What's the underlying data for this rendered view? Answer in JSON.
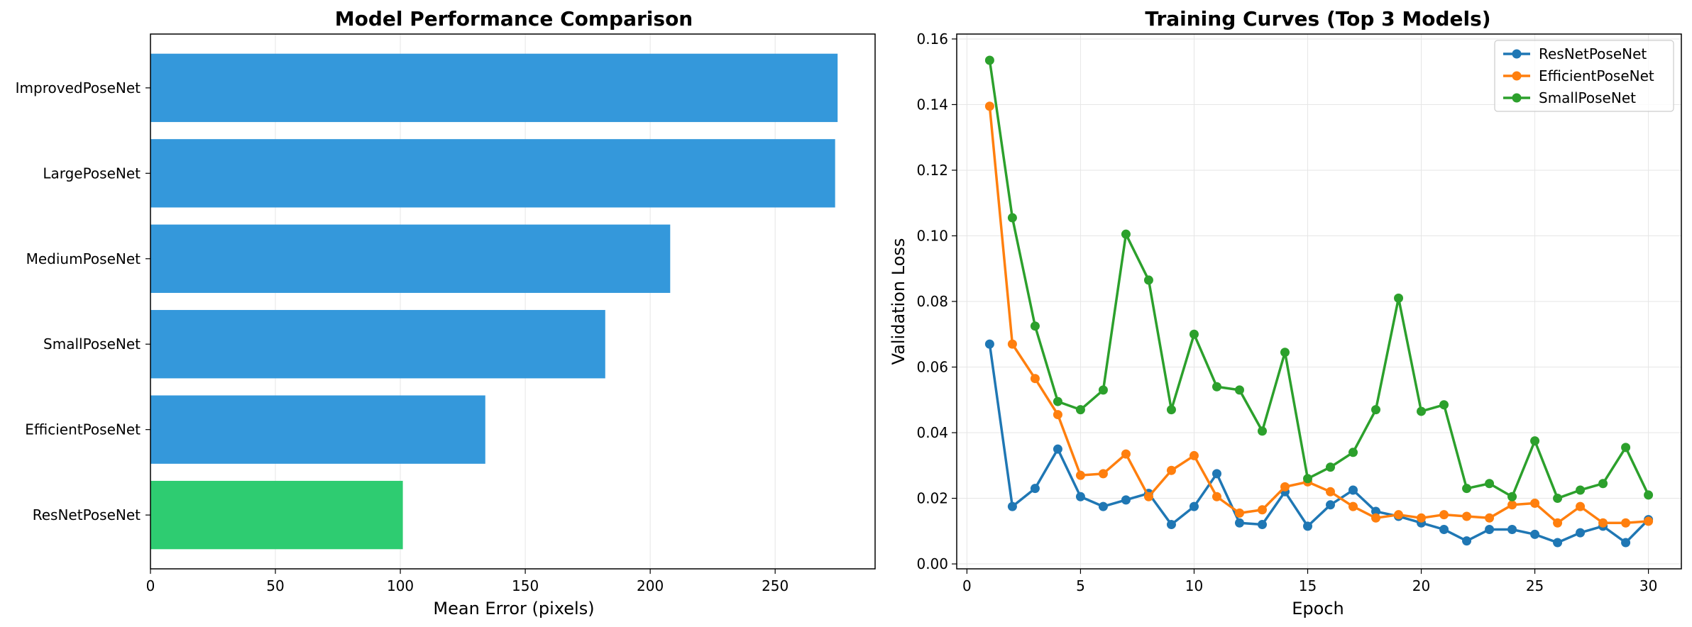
{
  "chart_data": [
    {
      "type": "bar",
      "orientation": "horizontal",
      "title": "Model Performance Comparison",
      "xlabel": "Mean Error (pixels)",
      "ylabel": "",
      "categories": [
        "ImprovedPoseNet",
        "LargePoseNet",
        "MediumPoseNet",
        "SmallPoseNet",
        "EfficientPoseNet",
        "ResNetPoseNet"
      ],
      "values": [
        275,
        274,
        208,
        182,
        134,
        101
      ],
      "bar_colors": [
        "#3498db",
        "#3498db",
        "#3498db",
        "#3498db",
        "#3498db",
        "#2ecc71"
      ],
      "xlim": [
        0,
        290
      ],
      "xticks": [
        0,
        50,
        100,
        150,
        200,
        250
      ],
      "grid": "x"
    },
    {
      "type": "line",
      "title": "Training Curves (Top 3 Models)",
      "xlabel": "Epoch",
      "ylabel": "Validation Loss",
      "x": [
        1,
        2,
        3,
        4,
        5,
        6,
        7,
        8,
        9,
        10,
        11,
        12,
        13,
        14,
        15,
        16,
        17,
        18,
        19,
        20,
        21,
        22,
        23,
        24,
        25,
        26,
        27,
        28,
        29,
        30
      ],
      "series": [
        {
          "name": "ResNetPoseNet",
          "color": "#1f77b4",
          "values": [
            0.067,
            0.0175,
            0.023,
            0.035,
            0.0205,
            0.0175,
            0.0195,
            0.0215,
            0.012,
            0.0175,
            0.0275,
            0.0125,
            0.012,
            0.022,
            0.0115,
            0.018,
            0.0225,
            0.016,
            0.0145,
            0.0125,
            0.0105,
            0.007,
            0.0105,
            0.0105,
            0.009,
            0.0065,
            0.0095,
            0.0115,
            0.0065,
            0.0135
          ]
        },
        {
          "name": "EfficientPoseNet",
          "color": "#ff7f0e",
          "values": [
            0.1395,
            0.067,
            0.0565,
            0.0455,
            0.027,
            0.0275,
            0.0335,
            0.0205,
            0.0285,
            0.033,
            0.0205,
            0.0155,
            0.0165,
            0.0235,
            0.025,
            0.022,
            0.0175,
            0.014,
            0.015,
            0.014,
            0.015,
            0.0145,
            0.014,
            0.018,
            0.0185,
            0.0125,
            0.0175,
            0.0125,
            0.0125,
            0.013
          ]
        },
        {
          "name": "SmallPoseNet",
          "color": "#2ca02c",
          "values": [
            0.1535,
            0.1055,
            0.0725,
            0.0495,
            0.047,
            0.053,
            0.1005,
            0.0865,
            0.047,
            0.07,
            0.054,
            0.053,
            0.0405,
            0.0645,
            0.026,
            0.0295,
            0.034,
            0.047,
            0.081,
            0.0465,
            0.0485,
            0.023,
            0.0245,
            0.0205,
            0.0375,
            0.02,
            0.0225,
            0.0245,
            0.0355,
            0.021
          ]
        }
      ],
      "xlim": [
        -0.45,
        31.45
      ],
      "ylim": [
        -0.0015,
        0.1615
      ],
      "xticks": [
        0,
        5,
        10,
        15,
        20,
        25,
        30
      ],
      "yticks": [
        "0.00",
        "0.02",
        "0.04",
        "0.06",
        "0.08",
        "0.10",
        "0.12",
        "0.14",
        "0.16"
      ],
      "grid": true,
      "legend_position": "top-right"
    }
  ]
}
